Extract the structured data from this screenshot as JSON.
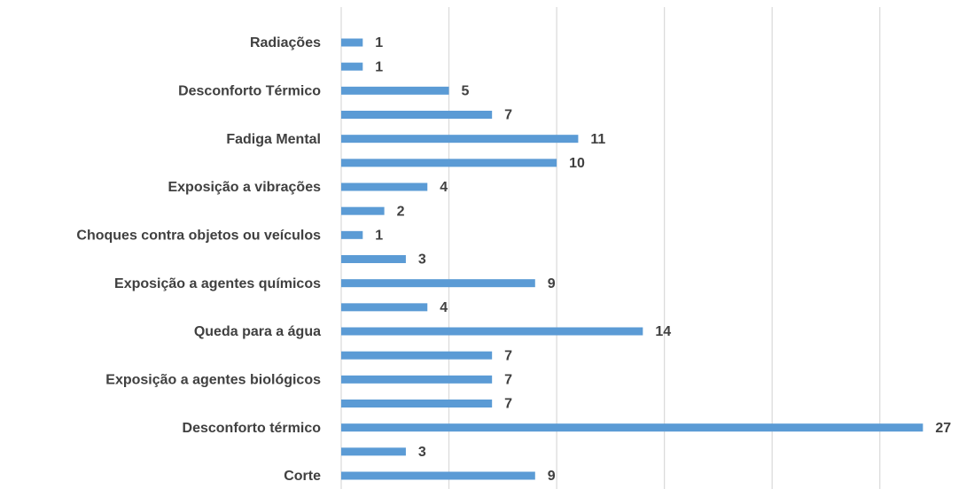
{
  "chart_data": {
    "type": "bar",
    "orientation": "horizontal",
    "categories": [
      "Radiações",
      null,
      "Desconforto Térmico",
      null,
      "Fadiga Mental",
      null,
      "Exposição a vibrações",
      null,
      "Choques contra objetos ou veículos",
      null,
      "Exposição a agentes químicos",
      null,
      "Queda para a água",
      null,
      "Exposição a agentes biológicos",
      null,
      "Desconforto térmico",
      null,
      "Corte"
    ],
    "values": [
      1,
      1,
      5,
      7,
      11,
      10,
      4,
      2,
      1,
      3,
      9,
      4,
      14,
      7,
      7,
      7,
      27,
      3,
      9
    ],
    "color": "#5b9bd5",
    "xlim": [
      0,
      29
    ],
    "xticks": [
      0,
      5,
      10,
      15,
      20,
      25
    ],
    "grid": true
  }
}
